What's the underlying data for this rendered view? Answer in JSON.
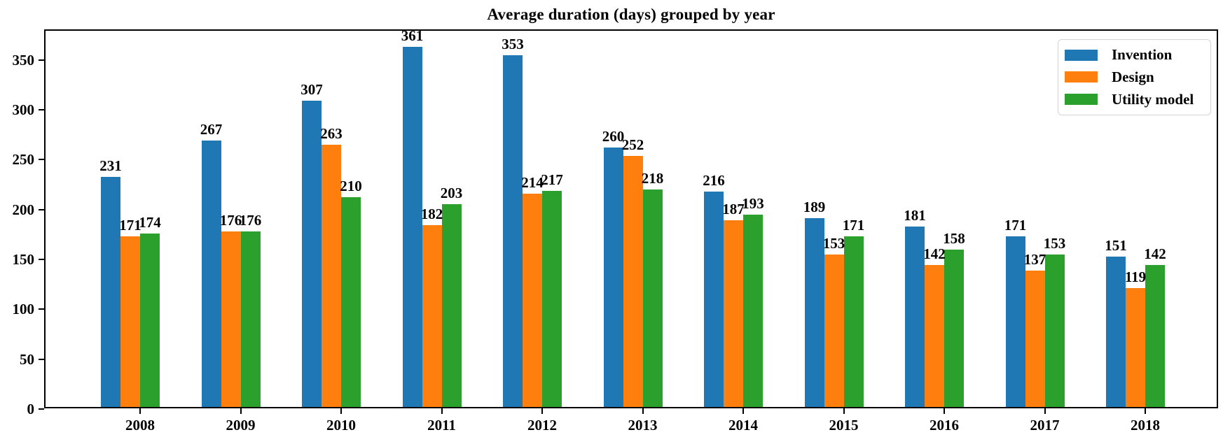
{
  "chart_data": {
    "type": "bar",
    "title": "Average duration (days) grouped by year",
    "xlabel": "",
    "ylabel": "",
    "categories": [
      "2008",
      "2009",
      "2010",
      "2011",
      "2012",
      "2013",
      "2014",
      "2015",
      "2016",
      "2017",
      "2018"
    ],
    "series": [
      {
        "name": "Invention",
        "color": "#1f77b4",
        "values": [
          231,
          267,
          307,
          361,
          353,
          260,
          216,
          189,
          181,
          171,
          151
        ]
      },
      {
        "name": "Design",
        "color": "#ff7f0e",
        "values": [
          171,
          176,
          263,
          182,
          214,
          252,
          187,
          153,
          142,
          137,
          119
        ]
      },
      {
        "name": "Utility model",
        "color": "#2ca02c",
        "values": [
          174,
          176,
          210,
          203,
          217,
          218,
          193,
          171,
          158,
          153,
          142
        ]
      }
    ],
    "yticks": [
      0,
      50,
      100,
      150,
      200,
      250,
      300,
      350
    ],
    "ylim": [
      0,
      380
    ],
    "grid": false,
    "bar_value_labels": true,
    "legend_position": "upper right",
    "axis_color": "#000000",
    "legend_border_color": "#d5d5d5",
    "background_color": "#ffffff"
  }
}
